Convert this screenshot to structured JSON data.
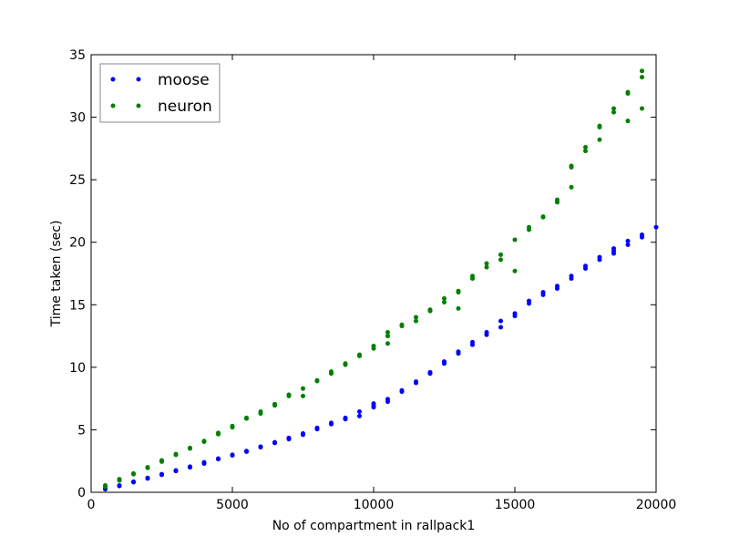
{
  "chart_data": {
    "type": "scatter",
    "title": "",
    "xlabel": "No of compartment in rallpack1",
    "ylabel": "Time taken (sec)",
    "xlim": [
      0,
      20000
    ],
    "ylim": [
      0,
      35
    ],
    "xticks": [
      0,
      5000,
      10000,
      15000,
      20000
    ],
    "xtick_labels": [
      "0",
      "5000",
      "10000",
      "15000",
      "20000"
    ],
    "yticks": [
      0,
      5,
      10,
      15,
      20,
      25,
      30,
      35
    ],
    "ytick_labels": [
      "0",
      "5",
      "10",
      "15",
      "20",
      "25",
      "30",
      "35"
    ],
    "grid": false,
    "legend_position": "top-left",
    "series": [
      {
        "name": "moose",
        "color": "#0000ff",
        "points": [
          [
            500,
            0.25
          ],
          [
            500,
            0.3
          ],
          [
            1000,
            0.5
          ],
          [
            1000,
            0.55
          ],
          [
            1500,
            0.8
          ],
          [
            1500,
            0.85
          ],
          [
            2000,
            1.1
          ],
          [
            2000,
            1.15
          ],
          [
            2500,
            1.4
          ],
          [
            2500,
            1.45
          ],
          [
            3000,
            1.7
          ],
          [
            3000,
            1.75
          ],
          [
            3500,
            2.0
          ],
          [
            3500,
            2.05
          ],
          [
            4000,
            2.3
          ],
          [
            4000,
            2.4
          ],
          [
            4500,
            2.65
          ],
          [
            4500,
            2.7
          ],
          [
            5000,
            2.95
          ],
          [
            5000,
            3.0
          ],
          [
            5500,
            3.25
          ],
          [
            5500,
            3.3
          ],
          [
            6000,
            3.6
          ],
          [
            6000,
            3.65
          ],
          [
            6500,
            3.95
          ],
          [
            6500,
            4.0
          ],
          [
            7000,
            4.25
          ],
          [
            7000,
            4.35
          ],
          [
            7500,
            4.6
          ],
          [
            7500,
            4.7
          ],
          [
            8000,
            5.05
          ],
          [
            8000,
            5.15
          ],
          [
            8500,
            5.45
          ],
          [
            8500,
            5.55
          ],
          [
            9000,
            5.85
          ],
          [
            9000,
            5.95
          ],
          [
            9500,
            6.1
          ],
          [
            9500,
            6.45
          ],
          [
            10000,
            6.8
          ],
          [
            10000,
            6.95
          ],
          [
            10000,
            7.1
          ],
          [
            10500,
            7.25
          ],
          [
            10500,
            7.45
          ],
          [
            11000,
            8.05
          ],
          [
            11000,
            8.15
          ],
          [
            11500,
            8.75
          ],
          [
            11500,
            8.85
          ],
          [
            12000,
            9.5
          ],
          [
            12000,
            9.6
          ],
          [
            12500,
            10.3
          ],
          [
            12500,
            10.45
          ],
          [
            13000,
            11.1
          ],
          [
            13000,
            11.25
          ],
          [
            13500,
            11.8
          ],
          [
            13500,
            12.0
          ],
          [
            14000,
            12.6
          ],
          [
            14000,
            12.8
          ],
          [
            14500,
            13.2
          ],
          [
            14500,
            13.7
          ],
          [
            15000,
            14.1
          ],
          [
            15000,
            14.3
          ],
          [
            15500,
            15.1
          ],
          [
            15500,
            15.3
          ],
          [
            16000,
            15.8
          ],
          [
            16000,
            16.0
          ],
          [
            16500,
            16.3
          ],
          [
            16500,
            16.5
          ],
          [
            17000,
            17.1
          ],
          [
            17000,
            17.3
          ],
          [
            17500,
            17.9
          ],
          [
            17500,
            18.1
          ],
          [
            18000,
            18.6
          ],
          [
            18000,
            18.8
          ],
          [
            18500,
            19.1
          ],
          [
            18500,
            19.3
          ],
          [
            18500,
            19.5
          ],
          [
            19000,
            19.8
          ],
          [
            19000,
            20.1
          ],
          [
            19500,
            20.4
          ],
          [
            19500,
            20.6
          ],
          [
            20000,
            21.2
          ]
        ]
      },
      {
        "name": "neuron",
        "color": "#008000",
        "points": [
          [
            500,
            0.45
          ],
          [
            500,
            0.55
          ],
          [
            1000,
            0.95
          ],
          [
            1000,
            1.05
          ],
          [
            1500,
            1.45
          ],
          [
            1500,
            1.5
          ],
          [
            2000,
            1.95
          ],
          [
            2000,
            2.0
          ],
          [
            2500,
            2.45
          ],
          [
            2500,
            2.55
          ],
          [
            3000,
            3.0
          ],
          [
            3000,
            3.05
          ],
          [
            3500,
            3.5
          ],
          [
            3500,
            3.55
          ],
          [
            4000,
            4.05
          ],
          [
            4000,
            4.1
          ],
          [
            4500,
            4.65
          ],
          [
            4500,
            4.75
          ],
          [
            5000,
            5.2
          ],
          [
            5000,
            5.3
          ],
          [
            5500,
            5.9
          ],
          [
            5500,
            5.95
          ],
          [
            6000,
            6.3
          ],
          [
            6000,
            6.45
          ],
          [
            6500,
            6.95
          ],
          [
            6500,
            7.05
          ],
          [
            7000,
            7.7
          ],
          [
            7000,
            7.8
          ],
          [
            7500,
            7.7
          ],
          [
            7500,
            8.3
          ],
          [
            8000,
            8.9
          ],
          [
            8000,
            8.95
          ],
          [
            8500,
            9.5
          ],
          [
            8500,
            9.65
          ],
          [
            9000,
            10.2
          ],
          [
            9000,
            10.3
          ],
          [
            9500,
            10.9
          ],
          [
            9500,
            11.0
          ],
          [
            10000,
            11.5
          ],
          [
            10000,
            11.7
          ],
          [
            10500,
            11.9
          ],
          [
            10500,
            12.5
          ],
          [
            10500,
            12.8
          ],
          [
            11000,
            13.3
          ],
          [
            11000,
            13.4
          ],
          [
            11500,
            13.7
          ],
          [
            11500,
            14.0
          ],
          [
            12000,
            14.5
          ],
          [
            12000,
            14.6
          ],
          [
            12500,
            15.2
          ],
          [
            12500,
            15.5
          ],
          [
            13000,
            14.7
          ],
          [
            13000,
            16.0
          ],
          [
            13000,
            16.1
          ],
          [
            13500,
            17.1
          ],
          [
            13500,
            17.3
          ],
          [
            14000,
            18.0
          ],
          [
            14000,
            18.3
          ],
          [
            14500,
            18.6
          ],
          [
            14500,
            19.0
          ],
          [
            15000,
            17.7
          ],
          [
            15000,
            20.2
          ],
          [
            15500,
            21.0
          ],
          [
            15500,
            21.2
          ],
          [
            16000,
            22.0
          ],
          [
            16000,
            22.05
          ],
          [
            16500,
            23.2
          ],
          [
            16500,
            23.4
          ],
          [
            17000,
            24.4
          ],
          [
            17000,
            26.0
          ],
          [
            17000,
            26.1
          ],
          [
            17500,
            27.3
          ],
          [
            17500,
            27.6
          ],
          [
            18000,
            28.2
          ],
          [
            18000,
            29.2
          ],
          [
            18000,
            29.3
          ],
          [
            18500,
            30.4
          ],
          [
            18500,
            30.7
          ],
          [
            19000,
            29.7
          ],
          [
            19000,
            31.9
          ],
          [
            19000,
            32.0
          ],
          [
            19500,
            30.7
          ],
          [
            19500,
            33.2
          ],
          [
            19500,
            33.7
          ]
        ]
      }
    ]
  }
}
